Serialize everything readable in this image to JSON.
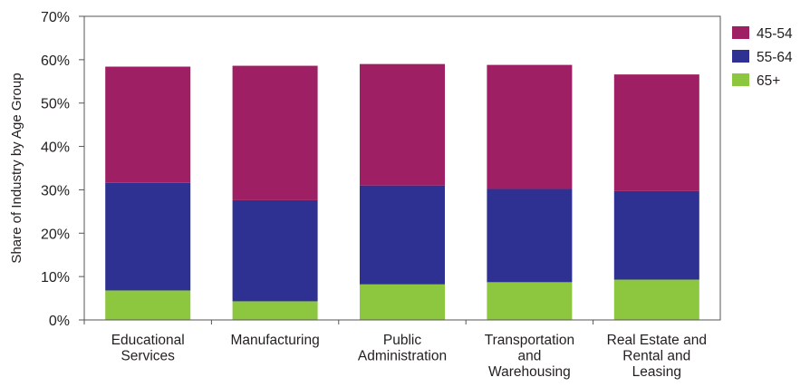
{
  "chart_data": {
    "type": "bar",
    "stacked": true,
    "categories": [
      [
        "Educational",
        "Services"
      ],
      [
        "Manufacturing"
      ],
      [
        "Public",
        "Administration"
      ],
      [
        "Transportation",
        "and",
        "Warehousing"
      ],
      [
        "Real Estate and",
        "Rental and",
        "Leasing"
      ]
    ],
    "series": [
      {
        "name": "65+",
        "color": "#8dc63f",
        "values": [
          6.8,
          4.3,
          8.2,
          8.7,
          9.3
        ]
      },
      {
        "name": "55-64",
        "color": "#2e3192",
        "values": [
          24.8,
          23.3,
          22.8,
          21.5,
          20.4
        ]
      },
      {
        "name": "45-54",
        "color": "#9e1f63",
        "values": [
          26.8,
          31.0,
          28.0,
          28.6,
          26.9
        ]
      }
    ],
    "legend_order": [
      "45-54",
      "55-64",
      "65+"
    ],
    "legend_position": "top-right",
    "ylabel": "Share of Industry by Age Group",
    "xlabel": "",
    "ylim": [
      0,
      70
    ],
    "yticks": [
      "0%",
      "10%",
      "20%",
      "30%",
      "40%",
      "50%",
      "60%",
      "70%"
    ],
    "grid": false
  }
}
